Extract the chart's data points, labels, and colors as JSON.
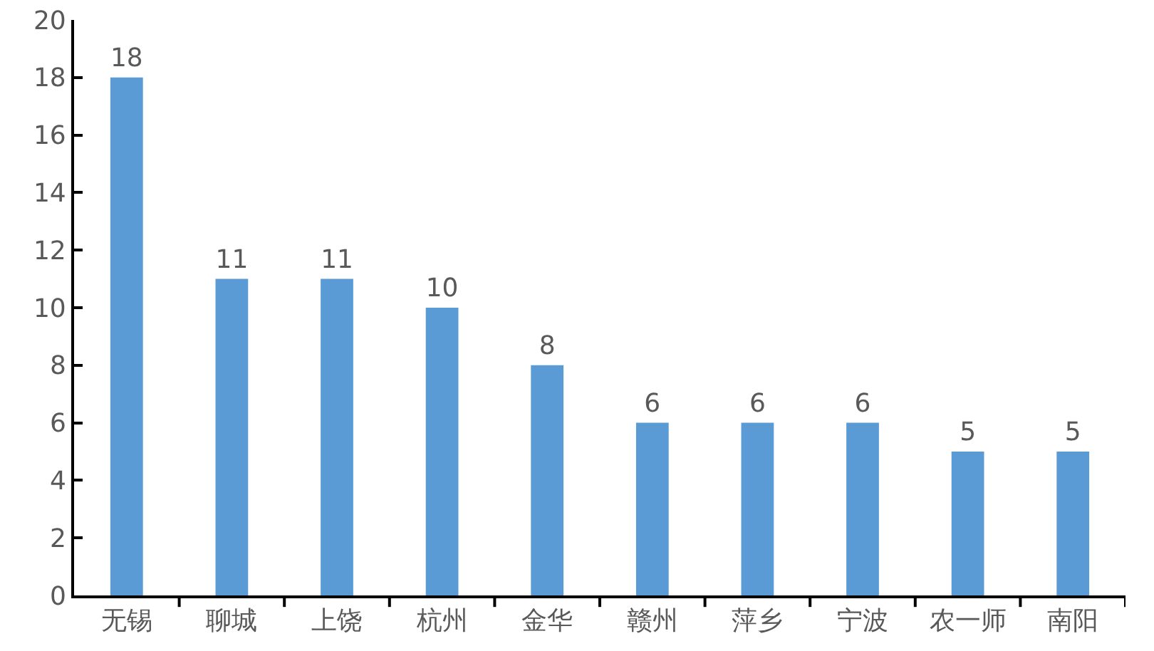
{
  "chart_data": {
    "type": "bar",
    "categories": [
      "无锡",
      "聊城",
      "上饶",
      "杭州",
      "金华",
      "赣州",
      "萍乡",
      "宁波",
      "农一师",
      "南阳"
    ],
    "values": [
      18,
      11,
      11,
      10,
      8,
      6,
      6,
      6,
      5,
      5
    ],
    "color": "#5b9bd5",
    "ylim": [
      0,
      20
    ],
    "yticks": [
      0,
      2,
      4,
      6,
      8,
      10,
      12,
      14,
      16,
      18,
      20
    ],
    "grid": false,
    "data_labels": true
  }
}
